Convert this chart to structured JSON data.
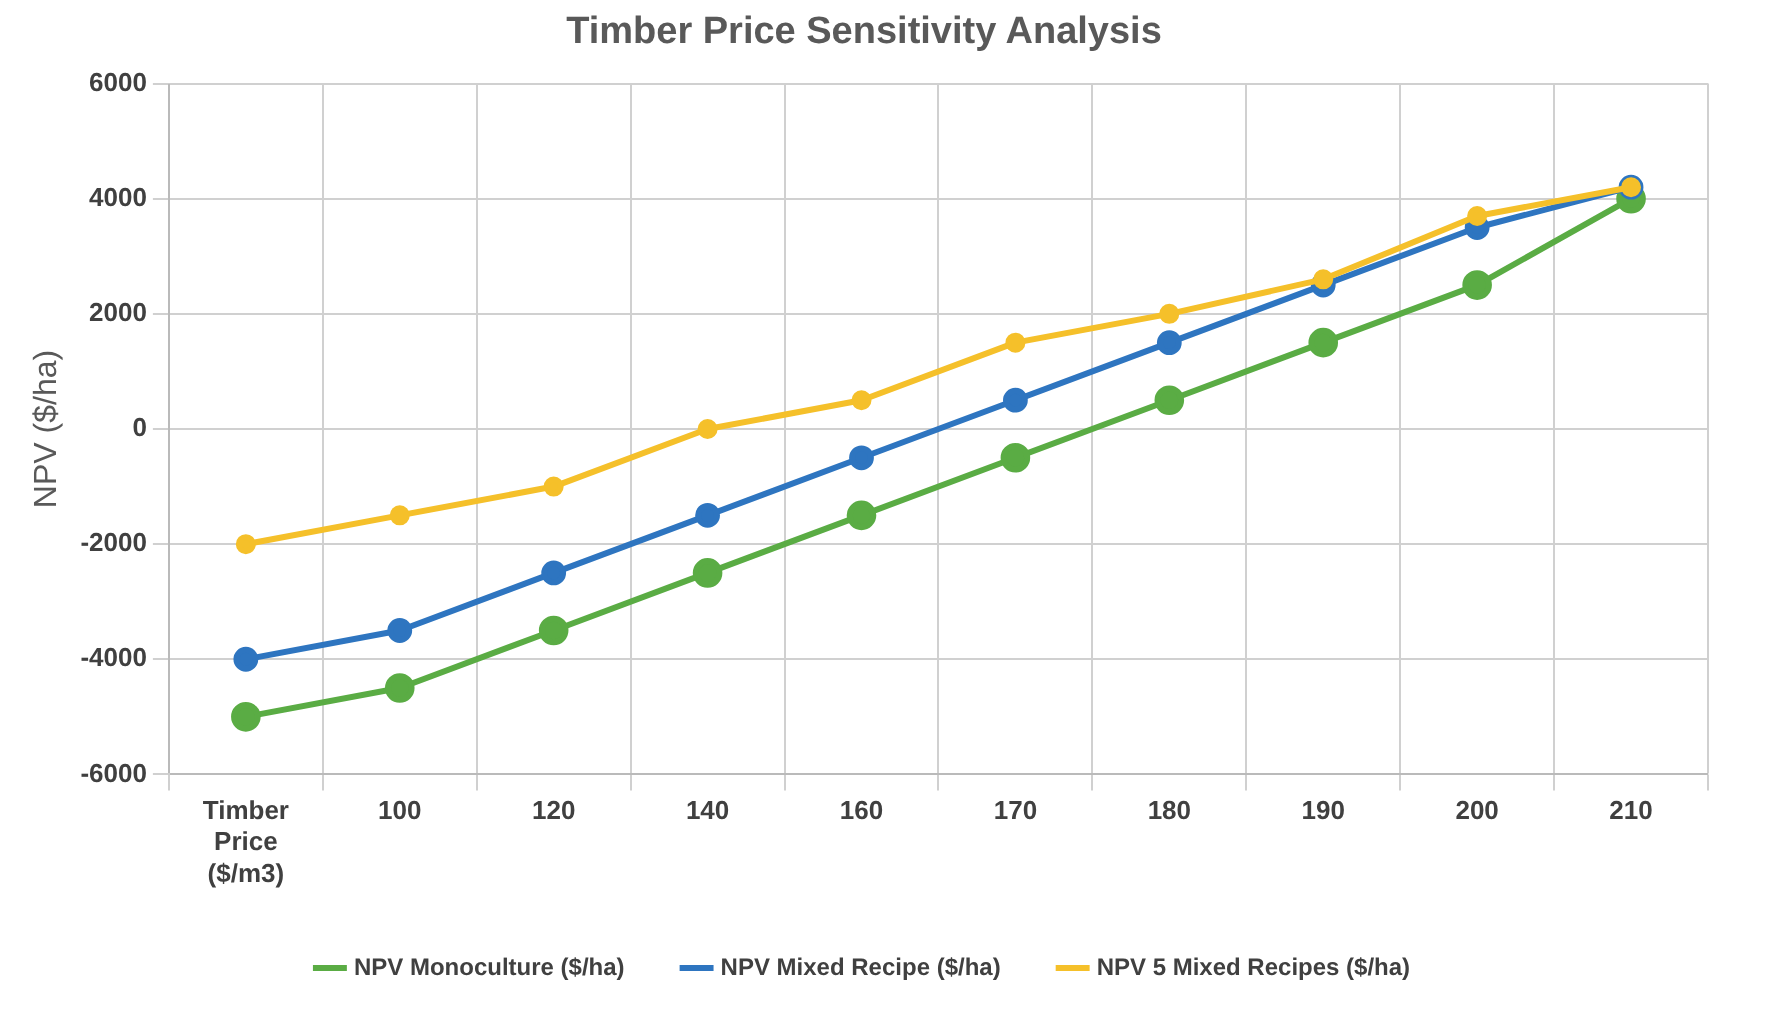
{
  "chart_data": {
    "type": "line",
    "title": "Timber Price Sensitivity Analysis",
    "ylabel": "NPV ($/ha)",
    "categories": [
      "Timber Price ($/m3)",
      "100",
      "120",
      "140",
      "160",
      "170",
      "180",
      "190",
      "200",
      "210"
    ],
    "series": [
      {
        "name": "NPV Monoculture ($/ha)",
        "color": "#5aac44",
        "values": [
          -5000,
          -4500,
          -3500,
          -2500,
          -1500,
          -500,
          500,
          1500,
          2500,
          4000
        ]
      },
      {
        "name": "NPV Mixed Recipe ($/ha)",
        "color": "#2e75c0",
        "values": [
          -4000,
          -3500,
          -2500,
          -1500,
          -500,
          500,
          1500,
          2500,
          3500,
          4200
        ]
      },
      {
        "name": "NPV 5 Mixed Recipes ($/ha)",
        "color": "#f5c02a",
        "values": [
          -2000,
          -1500,
          -1000,
          0,
          500,
          1500,
          2000,
          2600,
          3700,
          4200
        ]
      }
    ],
    "ylim": [
      -6000,
      6000
    ],
    "yticks": [
      -6000,
      -4000,
      -2000,
      0,
      2000,
      4000,
      6000
    ],
    "grid": true,
    "legend": "bottom",
    "marker": "circle",
    "line_style": "solid"
  }
}
